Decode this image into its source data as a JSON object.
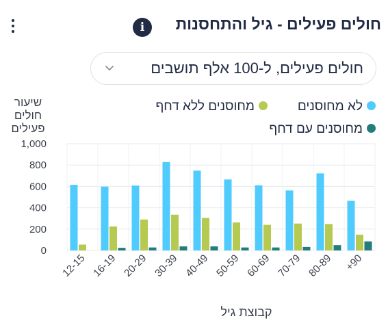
{
  "header": {
    "title": "חולים פעילים - גיל והתחסנות",
    "info_icon": "info-icon",
    "menu_icon": "kebab-menu-icon"
  },
  "select": {
    "value": "חולים פעילים, ל-100 אלף תושבים",
    "icon": "chevron-down-icon"
  },
  "chart_data": {
    "type": "bar",
    "xlabel": "קבוצת גיל",
    "ylabel_lines": [
      "שיעור",
      "חולים",
      "פעילים"
    ],
    "ylim": [
      0,
      1000
    ],
    "yticks": [
      0,
      200,
      400,
      600,
      800,
      1000
    ],
    "ytick_labels": [
      "0",
      "200",
      "400",
      "600",
      "800",
      "1,000"
    ],
    "grid": true,
    "legend_placement": "top",
    "categories": [
      "12-15",
      "16-19",
      "20-29",
      "30-39",
      "40-49",
      "50-59",
      "60-69",
      "70-79",
      "80-89",
      "90+"
    ],
    "category_labels": [
      "12-15",
      "16-19",
      "20-29",
      "30-39",
      "40-49",
      "50-59",
      "60-69",
      "70-79",
      "80-89",
      "+90"
    ],
    "series": [
      {
        "name": "לא מחוסנים",
        "color": "#50cbfd",
        "values": [
          615,
          598,
          608,
          828,
          748,
          665,
          610,
          562,
          722,
          465
        ]
      },
      {
        "name": "מחוסנים ללא דחף",
        "color": "#b6ca51",
        "values": [
          55,
          225,
          290,
          335,
          305,
          262,
          240,
          252,
          248,
          148
        ]
      },
      {
        "name": "מחוסנים עם דחף",
        "color": "#237d7d",
        "values": [
          0,
          25,
          28,
          38,
          38,
          28,
          28,
          33,
          50,
          85
        ]
      }
    ]
  }
}
